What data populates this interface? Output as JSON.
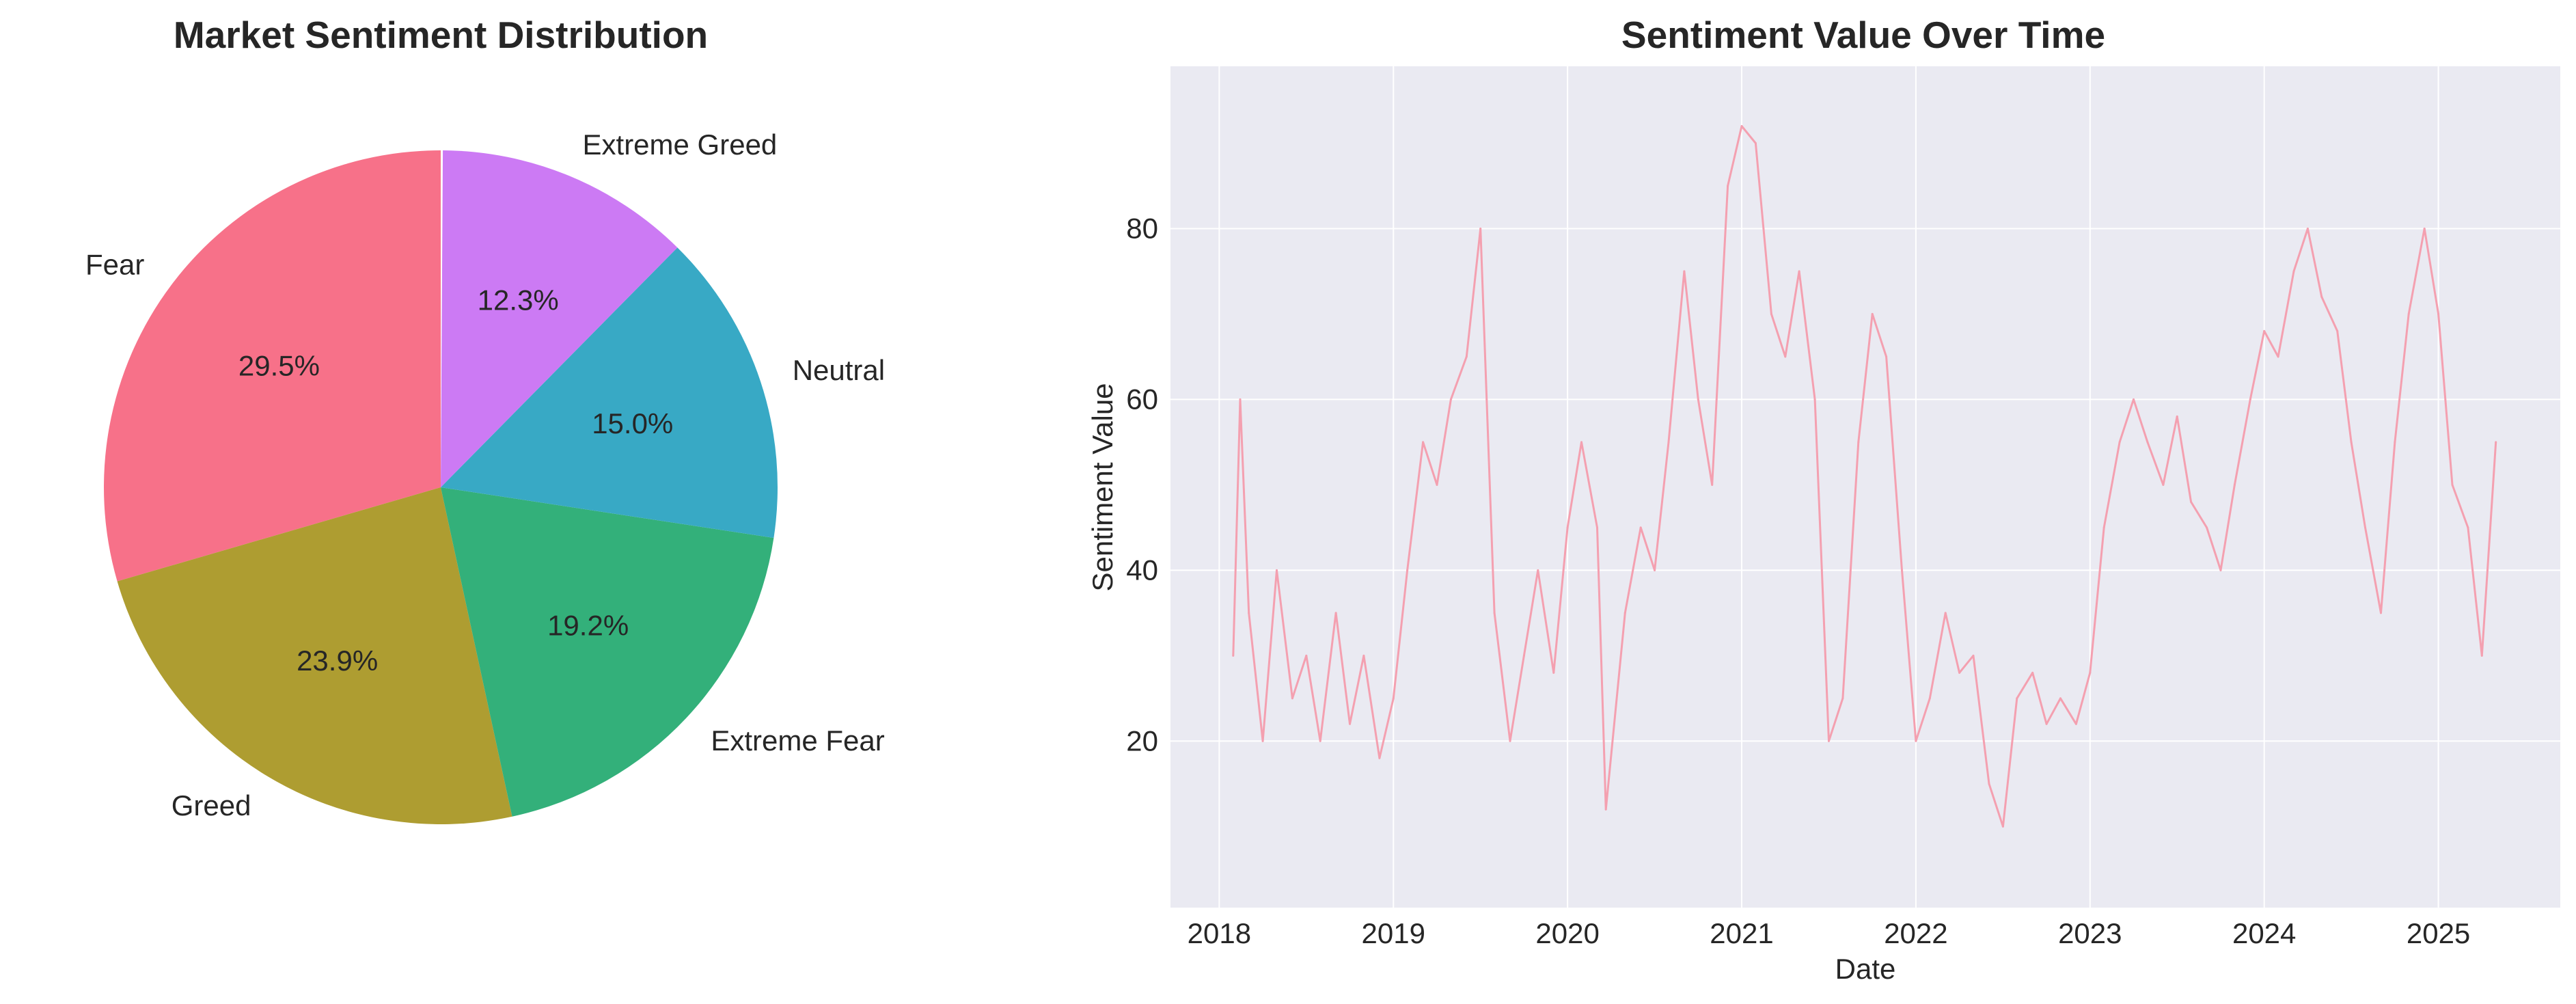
{
  "chart_data": [
    {
      "type": "pie",
      "title": "Market Sentiment Distribution",
      "start_angle_deg": 90,
      "direction": "counterclockwise",
      "slices": [
        {
          "label": "Fear",
          "percent": 29.5,
          "percent_label": "29.5%",
          "color": "#f77189"
        },
        {
          "label": "Greed",
          "percent": 23.9,
          "percent_label": "23.9%",
          "color": "#ae9d31"
        },
        {
          "label": "Extreme Fear",
          "percent": 19.2,
          "percent_label": "19.2%",
          "color": "#33b07a"
        },
        {
          "label": "Neutral",
          "percent": 15.0,
          "percent_label": "15.0%",
          "color": "#38a9c5"
        },
        {
          "label": "Extreme Greed",
          "percent": 12.3,
          "percent_label": "12.3%",
          "color": "#cc7af4"
        }
      ]
    },
    {
      "type": "line",
      "title": "Sentiment Value Over Time",
      "xlabel": "Date",
      "ylabel": "Sentiment Value",
      "xlim": [
        2017.72,
        2025.7
      ],
      "ylim": [
        0.5,
        99
      ],
      "grid": true,
      "background": "#eaeaf2",
      "line_color": "#f4a0b0",
      "xticks": [
        2018,
        2019,
        2020,
        2021,
        2022,
        2023,
        2024,
        2025
      ],
      "xtick_labels": [
        "2018",
        "2019",
        "2020",
        "2021",
        "2022",
        "2023",
        "2024",
        "2025"
      ],
      "yticks": [
        20,
        40,
        60,
        80
      ],
      "ytick_labels": [
        "20",
        "40",
        "60",
        "80"
      ],
      "series": [
        {
          "x": [
            2018.08,
            2018.12,
            2018.17,
            2018.25,
            2018.33,
            2018.42,
            2018.5,
            2018.58,
            2018.67,
            2018.75,
            2018.83,
            2018.92,
            2019.0,
            2019.08,
            2019.17,
            2019.25,
            2019.33,
            2019.42,
            2019.5,
            2019.58,
            2019.67,
            2019.75,
            2019.83,
            2019.92,
            2020.0,
            2020.08,
            2020.17,
            2020.22,
            2020.33,
            2020.42,
            2020.5,
            2020.58,
            2020.67,
            2020.75,
            2020.83,
            2020.92,
            2021.0,
            2021.08,
            2021.17,
            2021.25,
            2021.33,
            2021.42,
            2021.5,
            2021.58,
            2021.67,
            2021.75,
            2021.83,
            2021.92,
            2022.0,
            2022.08,
            2022.17,
            2022.25,
            2022.33,
            2022.42,
            2022.5,
            2022.58,
            2022.67,
            2022.75,
            2022.83,
            2022.92,
            2023.0,
            2023.08,
            2023.17,
            2023.25,
            2023.33,
            2023.42,
            2023.5,
            2023.58,
            2023.67,
            2023.75,
            2023.83,
            2023.92,
            2024.0,
            2024.08,
            2024.17,
            2024.25,
            2024.33,
            2024.42,
            2024.5,
            2024.58,
            2024.67,
            2024.75,
            2024.83,
            2024.92,
            2025.0,
            2025.08,
            2025.17,
            2025.25,
            2025.33
          ],
          "y": [
            30,
            60,
            35,
            20,
            40,
            25,
            30,
            20,
            35,
            22,
            30,
            18,
            25,
            40,
            55,
            50,
            60,
            65,
            80,
            35,
            20,
            30,
            40,
            28,
            45,
            55,
            45,
            12,
            35,
            45,
            40,
            55,
            75,
            60,
            50,
            85,
            92,
            90,
            70,
            65,
            75,
            60,
            20,
            25,
            55,
            70,
            65,
            40,
            20,
            25,
            35,
            28,
            30,
            15,
            10,
            25,
            28,
            22,
            25,
            22,
            28,
            45,
            55,
            60,
            55,
            50,
            58,
            48,
            45,
            40,
            50,
            60,
            68,
            65,
            75,
            80,
            72,
            68,
            55,
            45,
            35,
            55,
            70,
            80,
            70,
            50,
            45,
            30,
            55
          ]
        }
      ]
    }
  ]
}
